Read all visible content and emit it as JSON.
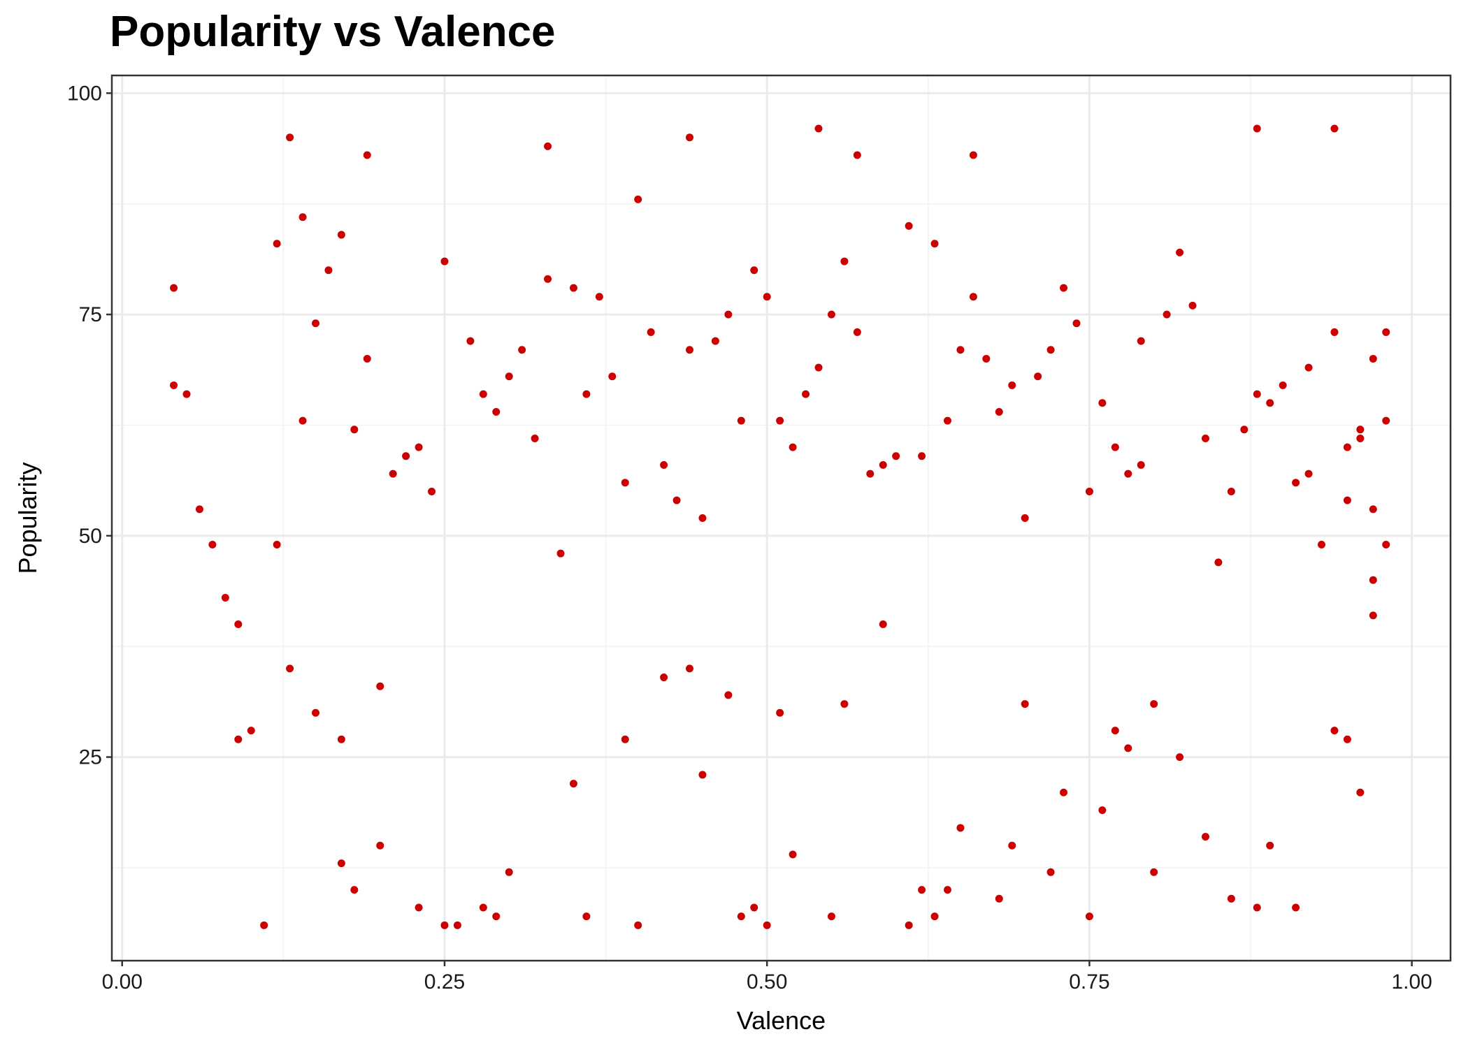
{
  "chart_data": {
    "type": "scatter",
    "title": "Popularity vs Valence",
    "xlabel": "Valence",
    "ylabel": "Popularity",
    "xlim": [
      0,
      1
    ],
    "ylim": [
      2,
      102
    ],
    "x_ticks": [
      0.0,
      0.25,
      0.5,
      0.75,
      1.0
    ],
    "x_tick_labels": [
      "0.00",
      "0.25",
      "0.50",
      "0.75",
      "1.00"
    ],
    "y_ticks": [
      25,
      50,
      75,
      100
    ],
    "y_tick_labels": [
      "25",
      "50",
      "75",
      "100"
    ],
    "grid": true,
    "theme": "bw",
    "point_color": "#CC0000",
    "series": [
      {
        "x": [
          0.04,
          0.04,
          0.05,
          0.06,
          0.07,
          0.08,
          0.09,
          0.09,
          0.1,
          0.11,
          0.12,
          0.13,
          0.13,
          0.14,
          0.15,
          0.17,
          0.17,
          0.18,
          0.19,
          0.2,
          0.2,
          0.23,
          0.25,
          0.26,
          0.28,
          0.29,
          0.3,
          0.33,
          0.35,
          0.36,
          0.39,
          0.4,
          0.42,
          0.44,
          0.44,
          0.45,
          0.47,
          0.48,
          0.49,
          0.5,
          0.51,
          0.52,
          0.54,
          0.55,
          0.56,
          0.57,
          0.59,
          0.61,
          0.62,
          0.63,
          0.64,
          0.65,
          0.66,
          0.68,
          0.69,
          0.7,
          0.72,
          0.73,
          0.75,
          0.76,
          0.77,
          0.78,
          0.8,
          0.8,
          0.82,
          0.84,
          0.86,
          0.88,
          0.88,
          0.89,
          0.91,
          0.94,
          0.94,
          0.95,
          0.96,
          0.98,
          0.98,
          0.12,
          0.15,
          0.18,
          0.22,
          0.25,
          0.28,
          0.31,
          0.34,
          0.37,
          0.4,
          0.43,
          0.46,
          0.49,
          0.52,
          0.55,
          0.58,
          0.61,
          0.64,
          0.67,
          0.7,
          0.73,
          0.76,
          0.79,
          0.82,
          0.85,
          0.88,
          0.91,
          0.94,
          0.96,
          0.97,
          0.14,
          0.19,
          0.24,
          0.29,
          0.33,
          0.38,
          0.42,
          0.47,
          0.51,
          0.56,
          0.6,
          0.65,
          0.69,
          0.74,
          0.78,
          0.83,
          0.87,
          0.92,
          0.95,
          0.97,
          0.16,
          0.21,
          0.27,
          0.32,
          0.36,
          0.41,
          0.45,
          0.5,
          0.54,
          0.59,
          0.63,
          0.68,
          0.72,
          0.77,
          0.81,
          0.86,
          0.9,
          0.93,
          0.96,
          0.97,
          0.17,
          0.23,
          0.3,
          0.35,
          0.39,
          0.44,
          0.48,
          0.53,
          0.57,
          0.62,
          0.66,
          0.71,
          0.75,
          0.79,
          0.84,
          0.89,
          0.92,
          0.95,
          0.97,
          0.98
        ],
        "y": [
          78,
          67,
          66,
          53,
          49,
          43,
          40,
          27,
          28,
          6,
          49,
          35,
          95,
          63,
          30,
          13,
          27,
          10,
          93,
          15,
          33,
          8,
          6,
          6,
          8,
          7,
          12,
          94,
          22,
          7,
          27,
          6,
          34,
          95,
          35,
          23,
          32,
          7,
          8,
          6,
          30,
          14,
          96,
          7,
          31,
          93,
          40,
          6,
          10,
          7,
          10,
          17,
          93,
          9,
          15,
          31,
          12,
          21,
          7,
          19,
          28,
          26,
          12,
          31,
          25,
          16,
          9,
          8,
          96,
          15,
          8,
          28,
          96,
          27,
          21,
          49,
          73,
          83,
          74,
          62,
          59,
          81,
          66,
          71,
          48,
          77,
          88,
          54,
          72,
          80,
          60,
          75,
          57,
          85,
          63,
          70,
          52,
          78,
          65,
          58,
          82,
          47,
          66,
          56,
          73,
          61,
          45,
          86,
          70,
          55,
          64,
          79,
          68,
          58,
          75,
          63,
          81,
          59,
          71,
          67,
          74,
          57,
          76,
          62,
          69,
          54,
          41,
          80,
          57,
          72,
          61,
          66,
          73,
          52,
          77,
          69,
          58,
          83,
          64,
          71,
          60,
          75,
          55,
          67,
          49,
          62,
          53,
          84,
          60,
          68,
          78,
          56,
          71,
          63,
          66,
          73,
          59,
          77,
          68,
          55,
          72,
          61,
          65,
          57,
          60,
          70,
          63
        ]
      }
    ]
  }
}
